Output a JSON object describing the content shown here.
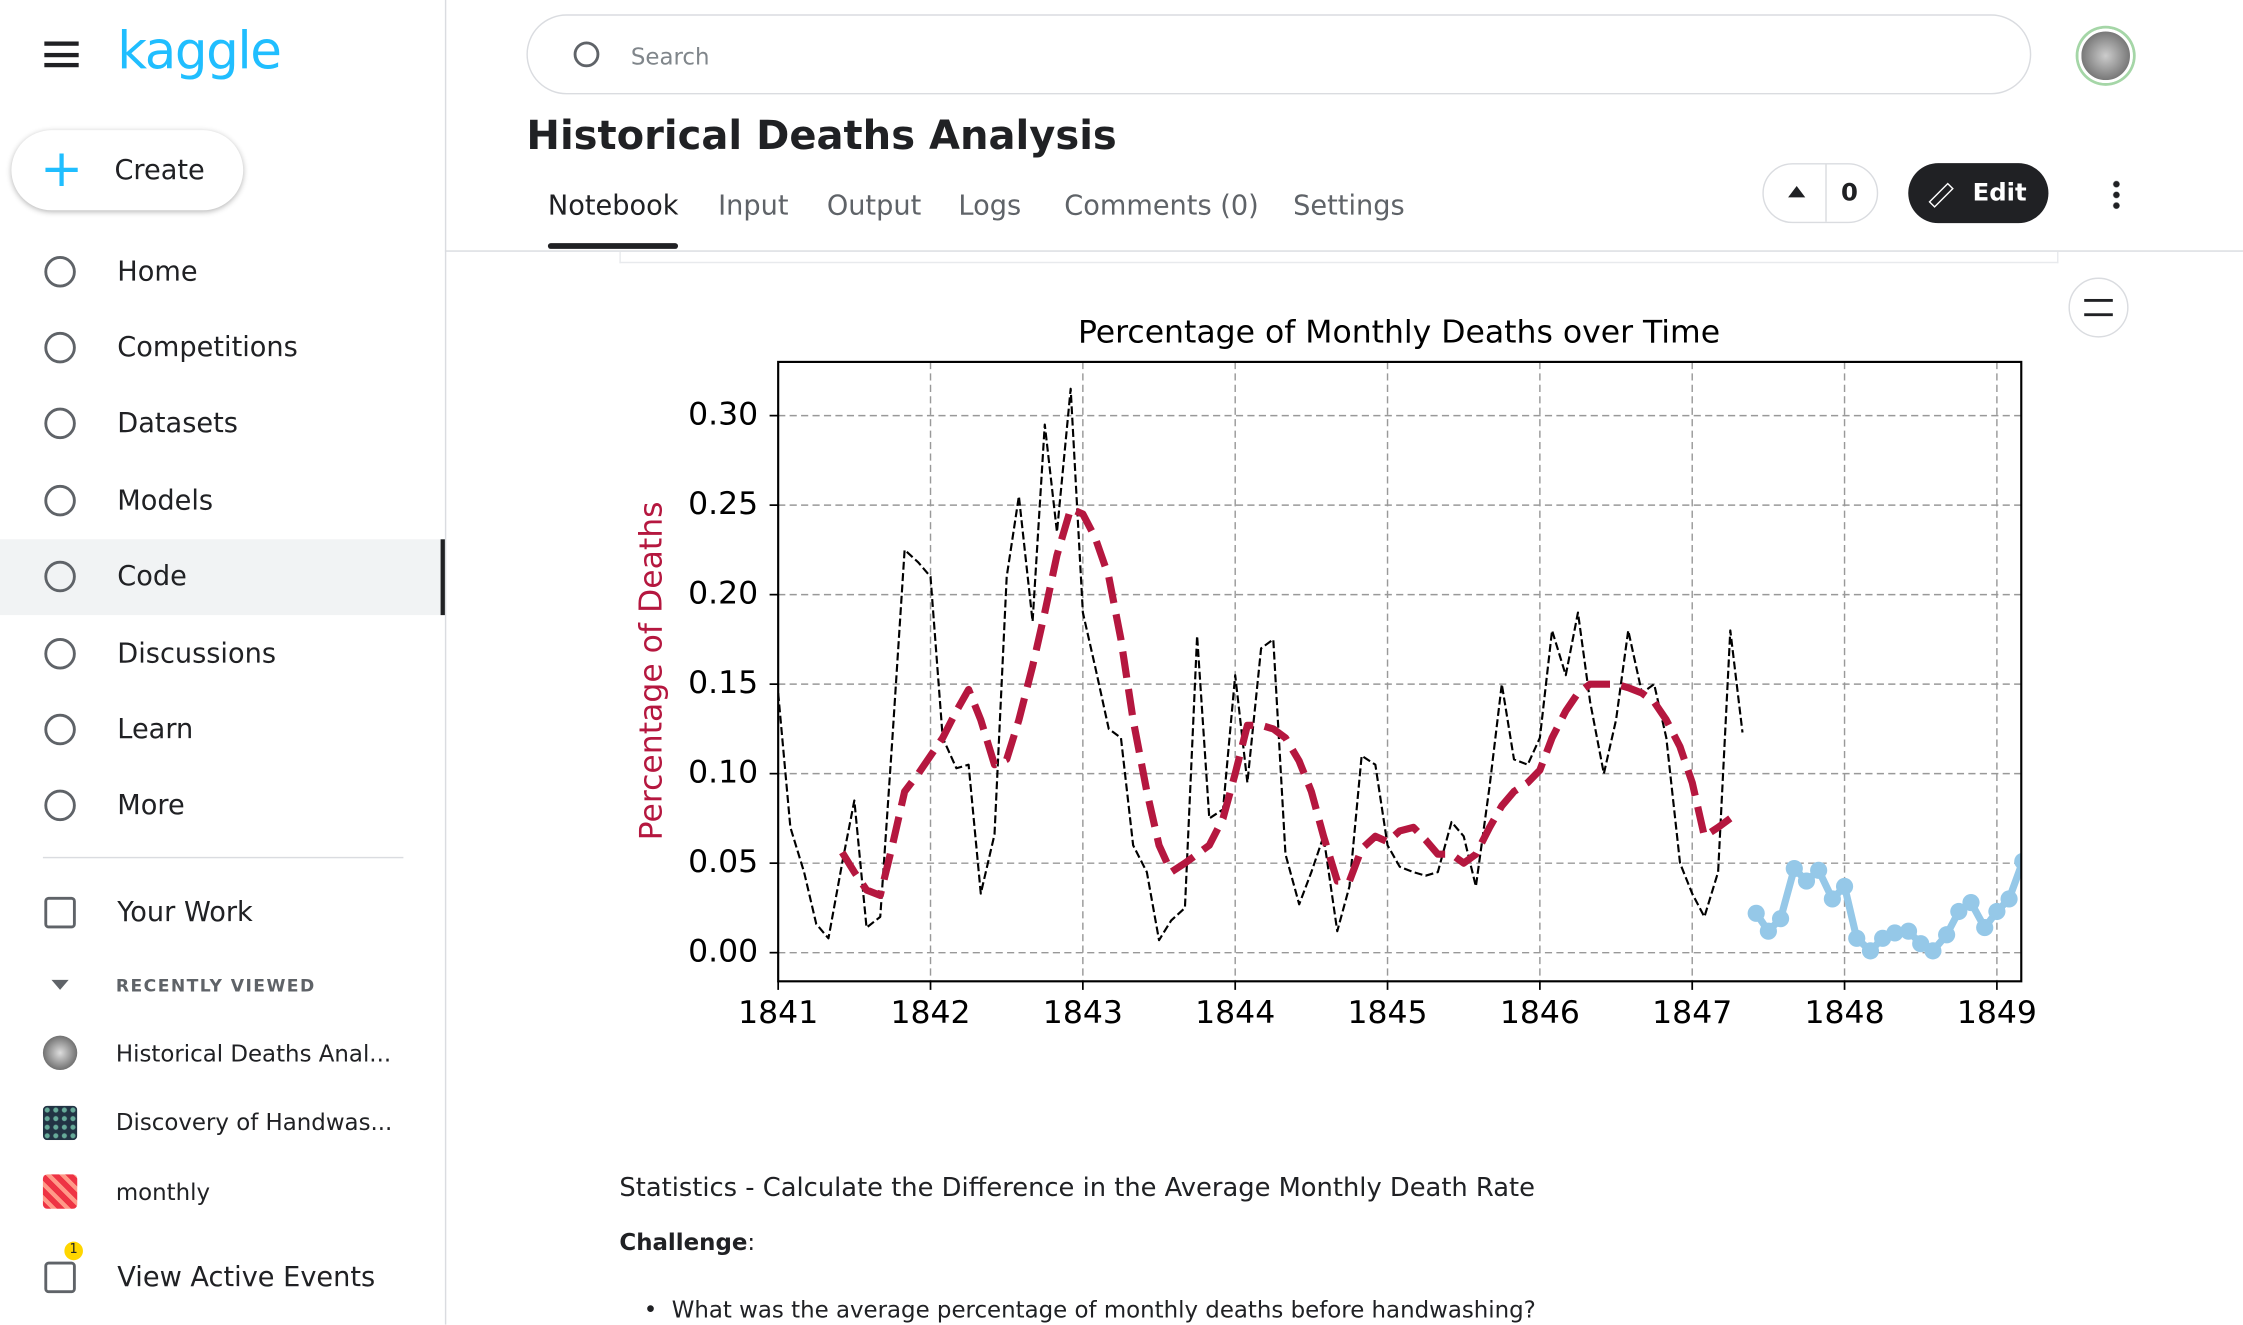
{
  "sidebar": {
    "logo": "kaggle",
    "create": "Create",
    "nav": [
      "Home",
      "Competitions",
      "Datasets",
      "Models",
      "Code",
      "Discussions",
      "Learn",
      "More"
    ],
    "active_index": 4,
    "your_work": "Your Work",
    "recent_heading": "RECENTLY VIEWED",
    "recent": [
      "Historical Deaths Anal...",
      "Discovery of Handwas...",
      "monthly"
    ],
    "events": "View Active Events",
    "events_badge": 1
  },
  "header": {
    "search": "Search",
    "title": "Historical Deaths Analysis",
    "tabs": [
      "Notebook",
      "Input",
      "Output",
      "Logs",
      "Comments (0)",
      "Settings"
    ],
    "votes": 0,
    "edit": "Edit"
  },
  "chart_data": {
    "type": "line",
    "title": "Percentage of Monthly Deaths over Time",
    "ylabel": "Percentage of Deaths",
    "ylabel_color": "#b5173f",
    "grid": true,
    "xlim": [
      1841,
      1849.16
    ],
    "ylim": [
      -0.016,
      0.33
    ],
    "xticks": [
      1841,
      1842,
      1843,
      1844,
      1845,
      1846,
      1847,
      1848,
      1849
    ],
    "yticks": [
      {
        "value": 0,
        "label": "0.00"
      },
      {
        "value": 0.05,
        "label": "0.05"
      },
      {
        "value": 0.1,
        "label": "0.10"
      },
      {
        "value": 0.15,
        "label": "0.15"
      },
      {
        "value": 0.2,
        "label": "0.20"
      },
      {
        "value": 0.25,
        "label": "0.25"
      },
      {
        "value": 0.3,
        "label": "0.30"
      }
    ],
    "series": [
      {
        "color": "#000000",
        "linestyle": "dashed",
        "linewidth": 1.5,
        "marker": false,
        "x": [
          1841.0,
          1841.08,
          1841.17,
          1841.25,
          1841.33,
          1841.42,
          1841.5,
          1841.58,
          1841.67,
          1841.75,
          1841.83,
          1841.92,
          1842.0,
          1842.08,
          1842.17,
          1842.25,
          1842.33,
          1842.42,
          1842.5,
          1842.58,
          1842.67,
          1842.75,
          1842.83,
          1842.92,
          1843.0,
          1843.08,
          1843.17,
          1843.25,
          1843.33,
          1843.42,
          1843.5,
          1843.58,
          1843.67,
          1843.75,
          1843.83,
          1843.92,
          1844.0,
          1844.08,
          1844.17,
          1844.25,
          1844.33,
          1844.42,
          1844.5,
          1844.58,
          1844.67,
          1844.75,
          1844.83,
          1844.92,
          1845.0,
          1845.08,
          1845.17,
          1845.25,
          1845.33,
          1845.42,
          1845.5,
          1845.58,
          1845.67,
          1845.75,
          1845.83,
          1845.92,
          1846.0,
          1846.08,
          1846.17,
          1846.25,
          1846.33,
          1846.42,
          1846.5,
          1846.58,
          1846.67,
          1846.75,
          1846.83,
          1846.92,
          1847.0,
          1847.08,
          1847.17,
          1847.25,
          1847.33
        ],
        "values": [
          0.145,
          0.07,
          0.045,
          0.016,
          0.008,
          0.05,
          0.085,
          0.014,
          0.02,
          0.12,
          0.225,
          0.218,
          0.21,
          0.12,
          0.103,
          0.105,
          0.033,
          0.066,
          0.21,
          0.255,
          0.185,
          0.295,
          0.235,
          0.315,
          0.19,
          0.16,
          0.125,
          0.12,
          0.06,
          0.045,
          0.007,
          0.018,
          0.025,
          0.177,
          0.075,
          0.08,
          0.155,
          0.095,
          0.17,
          0.175,
          0.055,
          0.027,
          0.045,
          0.065,
          0.012,
          0.037,
          0.11,
          0.105,
          0.06,
          0.048,
          0.045,
          0.043,
          0.045,
          0.073,
          0.065,
          0.037,
          0.093,
          0.15,
          0.108,
          0.105,
          0.12,
          0.18,
          0.155,
          0.19,
          0.14,
          0.1,
          0.13,
          0.18,
          0.145,
          0.15,
          0.12,
          0.05,
          0.033,
          0.02,
          0.045,
          0.18,
          0.123
        ]
      },
      {
        "color": "#b5173f",
        "linestyle": "dashed",
        "linewidth": 5,
        "marker": false,
        "x": [
          1841.42,
          1841.5,
          1841.58,
          1841.67,
          1841.75,
          1841.83,
          1841.92,
          1842.0,
          1842.08,
          1842.17,
          1842.25,
          1842.33,
          1842.42,
          1842.5,
          1842.58,
          1842.67,
          1842.75,
          1842.83,
          1842.92,
          1843.0,
          1843.08,
          1843.17,
          1843.25,
          1843.33,
          1843.42,
          1843.5,
          1843.58,
          1843.67,
          1843.75,
          1843.83,
          1843.92,
          1844.0,
          1844.08,
          1844.17,
          1844.25,
          1844.33,
          1844.42,
          1844.5,
          1844.58,
          1844.67,
          1844.75,
          1844.83,
          1844.92,
          1845.0,
          1845.08,
          1845.17,
          1845.25,
          1845.33,
          1845.42,
          1845.5,
          1845.58,
          1845.67,
          1845.75,
          1845.83,
          1845.92,
          1846.0,
          1846.08,
          1846.17,
          1846.25,
          1846.33,
          1846.42,
          1846.5,
          1846.58,
          1846.67,
          1846.75,
          1846.83,
          1846.92,
          1847.0,
          1847.08,
          1847.17,
          1847.25
        ],
        "values": [
          0.056,
          0.045,
          0.035,
          0.032,
          0.06,
          0.09,
          0.1,
          0.11,
          0.12,
          0.135,
          0.147,
          0.13,
          0.105,
          0.108,
          0.13,
          0.16,
          0.19,
          0.222,
          0.248,
          0.245,
          0.232,
          0.21,
          0.175,
          0.13,
          0.09,
          0.06,
          0.045,
          0.05,
          0.055,
          0.06,
          0.075,
          0.1,
          0.127,
          0.127,
          0.125,
          0.12,
          0.107,
          0.09,
          0.065,
          0.04,
          0.04,
          0.058,
          0.065,
          0.062,
          0.068,
          0.07,
          0.063,
          0.055,
          0.055,
          0.05,
          0.055,
          0.07,
          0.082,
          0.09,
          0.095,
          0.102,
          0.12,
          0.135,
          0.145,
          0.15,
          0.15,
          0.15,
          0.148,
          0.145,
          0.14,
          0.13,
          0.115,
          0.095,
          0.065,
          0.07,
          0.075
        ]
      },
      {
        "color": "#95c8e8",
        "linestyle": "solid",
        "linewidth": 5,
        "marker": true,
        "x": [
          1847.42,
          1847.5,
          1847.58,
          1847.67,
          1847.75,
          1847.83,
          1847.92,
          1848.0,
          1848.08,
          1848.17,
          1848.25,
          1848.33,
          1848.42,
          1848.5,
          1848.58,
          1848.67,
          1848.75,
          1848.83,
          1848.92,
          1849.0,
          1849.08,
          1849.17
        ],
        "values": [
          0.022,
          0.012,
          0.019,
          0.047,
          0.04,
          0.046,
          0.03,
          0.037,
          0.008,
          0.001,
          0.008,
          0.011,
          0.012,
          0.005,
          0.001,
          0.01,
          0.023,
          0.028,
          0.014,
          0.023,
          0.03,
          0.051
        ]
      }
    ]
  },
  "content": {
    "heading": "Statistics - Calculate the Difference in the Average Monthly Death Rate",
    "challenge": "Challenge",
    "colon": ":",
    "bullet": "What was the average percentage of monthly deaths before handwashing?"
  }
}
